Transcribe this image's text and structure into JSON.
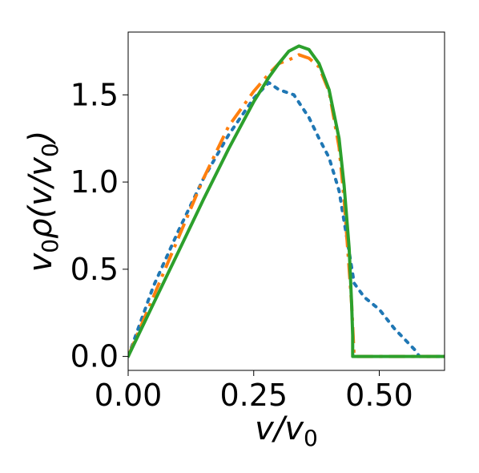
{
  "chart_data": {
    "type": "line",
    "title": "",
    "xlabel": "v/v0",
    "ylabel": "v0ρ(v/v0)",
    "xlim": [
      0.0,
      0.63
    ],
    "ylim": [
      -0.08,
      1.86
    ],
    "xticks": [
      0.0,
      0.25,
      0.5
    ],
    "xtick_labels": [
      "0.00",
      "0.25",
      "0.50"
    ],
    "yticks": [
      0.0,
      0.5,
      1.0,
      1.5
    ],
    "ytick_labels": [
      "0.0",
      "0.5",
      "1.0",
      "1.5"
    ],
    "grid": false,
    "legend": "none",
    "series": [
      {
        "color": "#1f77b4",
        "style": "dotted",
        "x": [
          0.0,
          0.05,
          0.1,
          0.15,
          0.2,
          0.25,
          0.28,
          0.3,
          0.33,
          0.36,
          0.38,
          0.4,
          0.42,
          0.44,
          0.45,
          0.47,
          0.5,
          0.53,
          0.55,
          0.57,
          0.58,
          0.62
        ],
        "y": [
          0.0,
          0.4,
          0.72,
          1.02,
          1.27,
          1.48,
          1.57,
          1.53,
          1.5,
          1.37,
          1.25,
          1.14,
          0.95,
          0.6,
          0.42,
          0.34,
          0.27,
          0.16,
          0.1,
          0.04,
          0.0,
          0.0
        ]
      },
      {
        "color": "#ff7f0e",
        "style": "dashdot",
        "x": [
          0.0,
          0.05,
          0.1,
          0.15,
          0.2,
          0.25,
          0.28,
          0.3,
          0.32,
          0.34,
          0.36,
          0.38,
          0.4,
          0.42,
          0.43,
          0.44,
          0.445,
          0.45,
          0.47,
          0.55,
          0.63
        ],
        "y": [
          0.0,
          0.34,
          0.68,
          1.02,
          1.32,
          1.52,
          1.62,
          1.68,
          1.7,
          1.73,
          1.71,
          1.66,
          1.52,
          1.2,
          0.9,
          0.5,
          0.3,
          0.0,
          0.0,
          0.0,
          0.0
        ]
      },
      {
        "color": "#2ca02c",
        "style": "solid",
        "x": [
          0.0,
          0.05,
          0.1,
          0.15,
          0.2,
          0.25,
          0.28,
          0.3,
          0.32,
          0.34,
          0.36,
          0.38,
          0.4,
          0.42,
          0.43,
          0.44,
          0.445,
          0.447,
          0.447,
          0.5,
          0.63
        ],
        "y": [
          0.0,
          0.3,
          0.6,
          0.9,
          1.19,
          1.46,
          1.6,
          1.68,
          1.75,
          1.78,
          1.76,
          1.68,
          1.53,
          1.25,
          0.98,
          0.62,
          0.3,
          0.12,
          0.0,
          0.0,
          0.0
        ]
      }
    ]
  }
}
